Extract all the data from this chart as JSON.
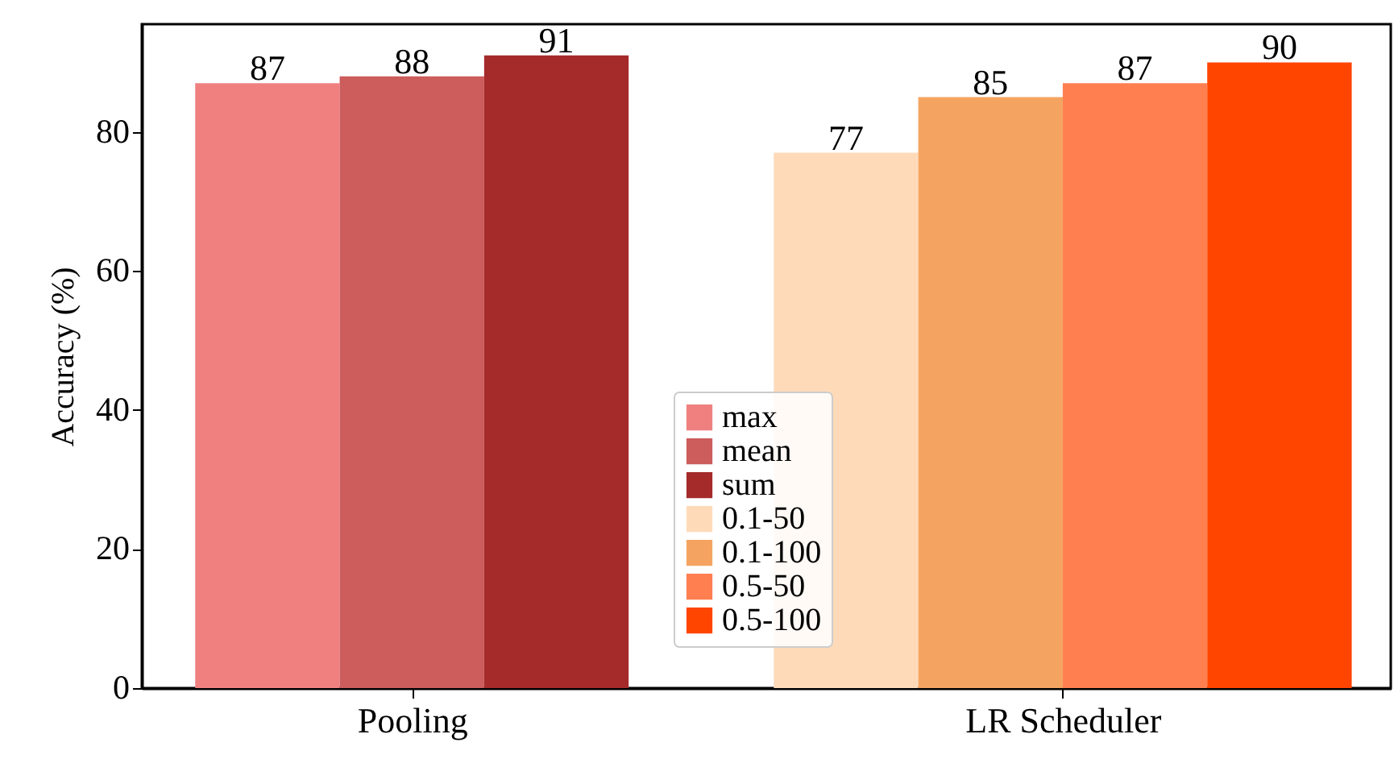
{
  "chart_data": {
    "type": "bar",
    "ylabel": "Accuracy (%)",
    "categories": [
      "Pooling",
      "LR Scheduler"
    ],
    "series": [
      {
        "name": "max",
        "color": "#f08080",
        "values": [
          87,
          null
        ]
      },
      {
        "name": "mean",
        "color": "#cd5c5c",
        "values": [
          88,
          null
        ]
      },
      {
        "name": "sum",
        "color": "#a52a2a",
        "values": [
          91,
          null
        ]
      },
      {
        "name": "0.1-50",
        "color": "#ffdab9",
        "values": [
          null,
          77
        ]
      },
      {
        "name": "0.1-100",
        "color": "#f4a460",
        "values": [
          null,
          85
        ]
      },
      {
        "name": "0.5-50",
        "color": "#ff7f50",
        "values": [
          null,
          87
        ]
      },
      {
        "name": "0.5-100",
        "color": "#ff4500",
        "values": [
          null,
          90
        ]
      }
    ],
    "ylim": [
      0,
      95.5
    ],
    "yticks": [
      0,
      20,
      40,
      60,
      80
    ],
    "data_labels": true,
    "grid": false,
    "legend": "bottom"
  }
}
